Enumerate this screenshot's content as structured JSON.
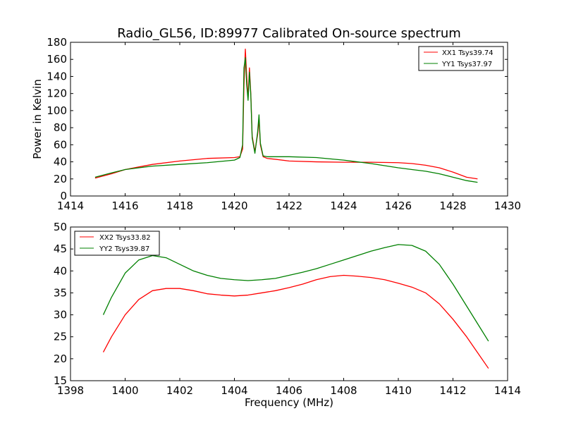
{
  "title": "Radio_GL56, ID:89977 Calibrated On-source spectrum",
  "chart_data": [
    {
      "type": "line",
      "title": "Radio_GL56, ID:89977 Calibrated On-source spectrum",
      "xlabel": "",
      "ylabel": "Power in Kelvin",
      "xlim": [
        1414,
        1430
      ],
      "ylim": [
        0,
        180
      ],
      "xticks": [
        1414,
        1416,
        1418,
        1420,
        1422,
        1424,
        1426,
        1428,
        1430
      ],
      "yticks": [
        0,
        20,
        40,
        60,
        80,
        100,
        120,
        140,
        160,
        180
      ],
      "legend_position": "top-right",
      "series": [
        {
          "name": "XX1 Tsys39.74",
          "color": "#ff0000",
          "x": [
            1414.9,
            1415.5,
            1416.0,
            1416.5,
            1417.0,
            1418.0,
            1419.0,
            1420.0,
            1420.2,
            1420.3,
            1420.35,
            1420.4,
            1420.45,
            1420.5,
            1420.55,
            1420.6,
            1420.65,
            1420.75,
            1420.85,
            1420.9,
            1420.95,
            1421.05,
            1421.2,
            1421.5,
            1422.0,
            1423.0,
            1424.0,
            1425.0,
            1426.0,
            1426.5,
            1427.0,
            1427.5,
            1428.0,
            1428.5,
            1428.9
          ],
          "y": [
            21,
            26,
            31,
            34,
            37,
            41,
            44,
            45,
            46,
            55,
            130,
            172,
            140,
            115,
            150,
            120,
            70,
            52,
            72,
            90,
            60,
            46,
            44,
            43,
            41,
            40,
            39.5,
            39.5,
            39,
            38,
            36,
            33,
            28,
            22,
            20
          ]
        },
        {
          "name": "YY1 Tsys37.97",
          "color": "#008000",
          "x": [
            1414.9,
            1415.5,
            1416.0,
            1416.5,
            1417.0,
            1418.0,
            1419.0,
            1420.0,
            1420.2,
            1420.3,
            1420.35,
            1420.4,
            1420.45,
            1420.5,
            1420.55,
            1420.6,
            1420.65,
            1420.75,
            1420.85,
            1420.9,
            1420.95,
            1421.05,
            1421.2,
            1421.5,
            1422.0,
            1423.0,
            1424.0,
            1425.0,
            1426.0,
            1426.5,
            1427.0,
            1427.5,
            1428.0,
            1428.5,
            1428.9
          ],
          "y": [
            22,
            27,
            31,
            33,
            35,
            37,
            39,
            42,
            45,
            60,
            150,
            162,
            130,
            112,
            145,
            118,
            68,
            50,
            75,
            95,
            62,
            47,
            46,
            46,
            46,
            45,
            42,
            38,
            33,
            31,
            29,
            26,
            22,
            18,
            16
          ]
        }
      ]
    },
    {
      "type": "line",
      "title": "",
      "xlabel": "Frequency (MHz)",
      "ylabel": "",
      "xlim": [
        1398,
        1414
      ],
      "ylim": [
        15,
        50
      ],
      "xticks": [
        1398,
        1400,
        1402,
        1404,
        1406,
        1408,
        1410,
        1412,
        1414
      ],
      "yticks": [
        15,
        20,
        25,
        30,
        35,
        40,
        45,
        50
      ],
      "legend_position": "top-left",
      "series": [
        {
          "name": "XX2 Tsys33.82",
          "color": "#ff0000",
          "x": [
            1399.2,
            1399.5,
            1400.0,
            1400.5,
            1401.0,
            1401.5,
            1402.0,
            1402.5,
            1403.0,
            1403.5,
            1404.0,
            1404.5,
            1405.0,
            1405.5,
            1406.0,
            1406.5,
            1407.0,
            1407.5,
            1408.0,
            1408.5,
            1409.0,
            1409.5,
            1410.0,
            1410.5,
            1411.0,
            1411.5,
            1412.0,
            1412.5,
            1413.0,
            1413.3
          ],
          "y": [
            21.5,
            25,
            30,
            33.5,
            35.5,
            36,
            36,
            35.5,
            34.8,
            34.5,
            34.3,
            34.5,
            35,
            35.5,
            36.2,
            37,
            38,
            38.7,
            39,
            38.8,
            38.5,
            38,
            37.2,
            36.3,
            35,
            32.5,
            29,
            25,
            20.5,
            17.8
          ]
        },
        {
          "name": "YY2 Tsys39.87",
          "color": "#008000",
          "x": [
            1399.2,
            1399.5,
            1400.0,
            1400.5,
            1401.0,
            1401.5,
            1402.0,
            1402.5,
            1403.0,
            1403.5,
            1404.0,
            1404.5,
            1405.0,
            1405.5,
            1406.0,
            1406.5,
            1407.0,
            1407.5,
            1408.0,
            1408.5,
            1409.0,
            1409.5,
            1410.0,
            1410.5,
            1411.0,
            1411.5,
            1412.0,
            1412.5,
            1413.0,
            1413.3
          ],
          "y": [
            30,
            34,
            39.5,
            42.5,
            43.5,
            43,
            41.5,
            40,
            39,
            38.3,
            38,
            37.8,
            38,
            38.3,
            39,
            39.7,
            40.5,
            41.5,
            42.5,
            43.5,
            44.5,
            45.3,
            46,
            45.8,
            44.5,
            41.5,
            37,
            32,
            27,
            24
          ]
        }
      ]
    }
  ]
}
